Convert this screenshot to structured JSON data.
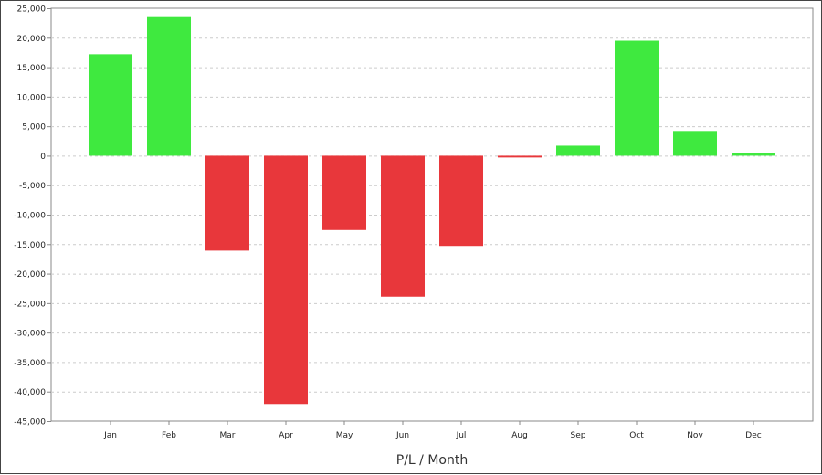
{
  "chart_data": {
    "type": "bar",
    "title": "",
    "xlabel": "P/L / Month",
    "ylabel": "",
    "categories": [
      "Jan",
      "Feb",
      "Mar",
      "Apr",
      "May",
      "Jun",
      "Jul",
      "Aug",
      "Sep",
      "Oct",
      "Nov",
      "Dec"
    ],
    "values": [
      17200,
      23500,
      -16100,
      -42100,
      -12600,
      -23900,
      -15300,
      -300,
      1700,
      19500,
      4200,
      400
    ],
    "ylim": [
      -45000,
      25000
    ],
    "yticks": [
      25000,
      20000,
      15000,
      10000,
      5000,
      0,
      -5000,
      -10000,
      -15000,
      -20000,
      -25000,
      -30000,
      -35000,
      -40000,
      -45000
    ],
    "ytick_labels": [
      "25,000",
      "20,000",
      "15,000",
      "10,000",
      "5,000",
      "0",
      "-5,000",
      "-10,000",
      "-15,000",
      "-20,000",
      "-25,000",
      "-30,000",
      "-35,000",
      "-40,000",
      "-45,000"
    ],
    "grid": true,
    "legend": "none",
    "colors": {
      "positive": "#3fe93f",
      "negative": "#e8373b",
      "grid": "#cccccc",
      "axis": "#888888"
    }
  }
}
